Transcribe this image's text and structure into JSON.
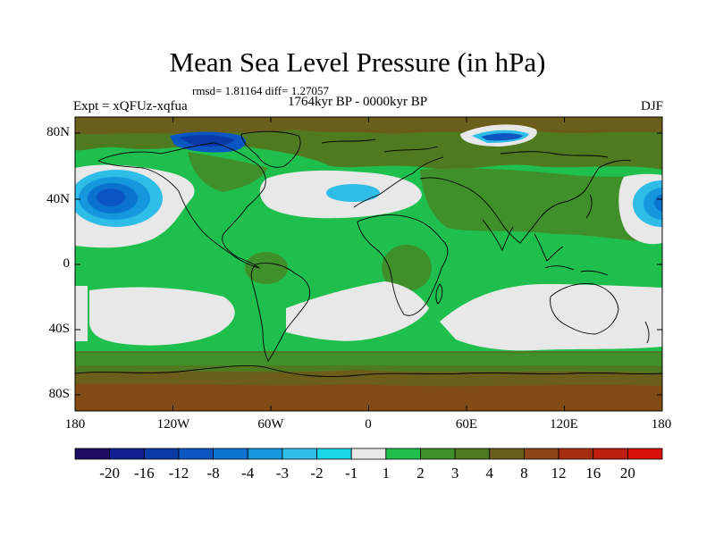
{
  "title": "Mean Sea Level Pressure (in hPa)",
  "stats": "rmsd= 1.81164 diff= 1.27057",
  "period": "1764kyr BP - 0000kyr BP",
  "experiment": "Expt = xQFUz-xqfua",
  "season": "DJF",
  "lat_ticks": [
    "80N",
    "40N",
    "0",
    "40S",
    "80S"
  ],
  "lon_ticks": [
    "180",
    "120W",
    "60W",
    "0",
    "60E",
    "120E",
    "180"
  ],
  "colorbar": {
    "labels": [
      "-20",
      "-16",
      "-12",
      "-8",
      "-4",
      "-3",
      "-2",
      "-1",
      "1",
      "2",
      "3",
      "4",
      "8",
      "12",
      "16",
      "20"
    ],
    "colors": [
      "#1c0d63",
      "#0f1f8f",
      "#0a3aa8",
      "#0b56c2",
      "#0a72cf",
      "#1497dc",
      "#2dbde6",
      "#19d7e8",
      "#e8e8e8",
      "#1fbf4e",
      "#3f8f2a",
      "#4f7a20",
      "#6b5d1a",
      "#8b4414",
      "#a52e10",
      "#c01e0e",
      "#d61208"
    ]
  },
  "colors": {
    "land_coast": "#000000",
    "background": "#ffffff"
  }
}
